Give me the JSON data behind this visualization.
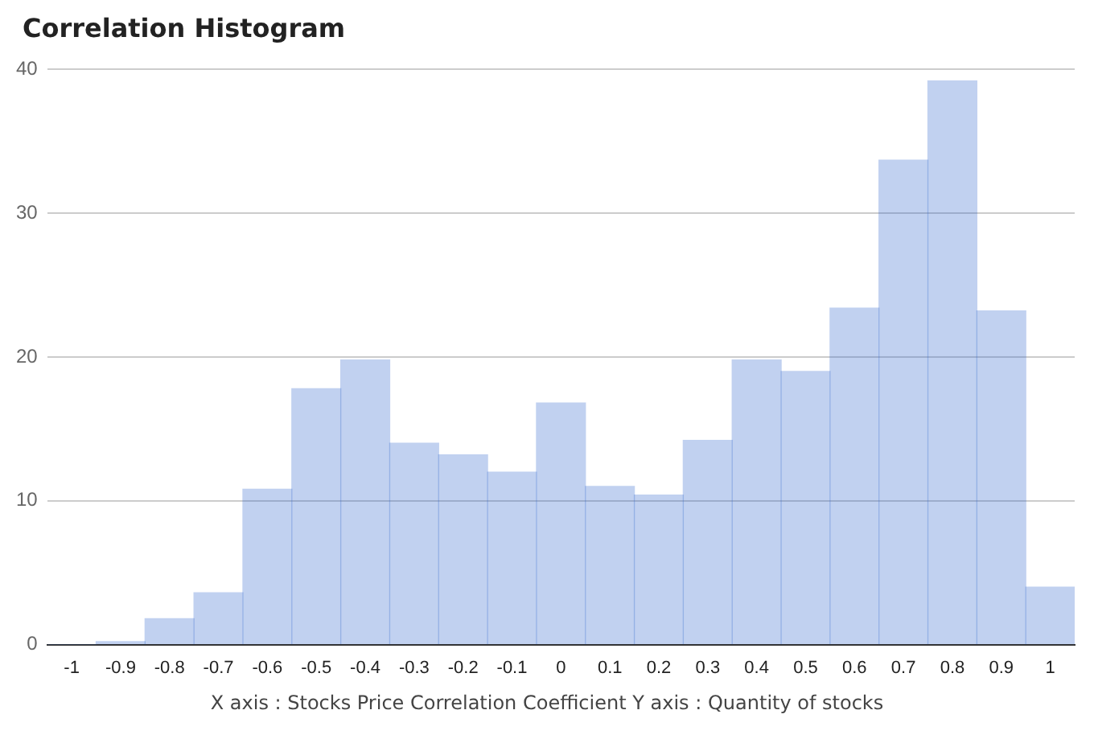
{
  "chart_data": {
    "type": "histogram",
    "title": "Correlation Histogram",
    "xlabel": "X axis : Stocks Price Correlation Coefficient  Y axis : Quantity of stocks",
    "bins": [
      -1.05,
      -0.95,
      -0.85,
      -0.75,
      -0.65,
      -0.55,
      -0.45,
      -0.35,
      -0.25,
      -0.15,
      -0.05,
      0.05,
      0.15,
      0.25,
      0.35,
      0.45,
      0.55,
      0.65,
      0.75,
      0.85,
      0.95,
      1.05
    ],
    "values": [
      0,
      0.2,
      1.8,
      3.6,
      10.8,
      17.8,
      19.8,
      14,
      13.2,
      12,
      16.8,
      11,
      10.4,
      14.2,
      19.8,
      19,
      23.4,
      33.7,
      39.2,
      23.2,
      4
    ],
    "color": "#3366cc",
    "xlim": [
      -1.05,
      1.05
    ],
    "xticks": [
      -1,
      -0.9,
      -0.8,
      -0.7,
      -0.6,
      -0.5,
      -0.4,
      -0.3,
      -0.2,
      -0.1,
      0,
      0.1,
      0.2,
      0.3,
      0.4,
      0.5,
      0.6,
      0.7,
      0.8,
      0.9,
      1
    ],
    "ylim": [
      0,
      40
    ],
    "yticks": [
      0,
      10,
      20,
      30,
      40
    ],
    "grid": "y"
  }
}
